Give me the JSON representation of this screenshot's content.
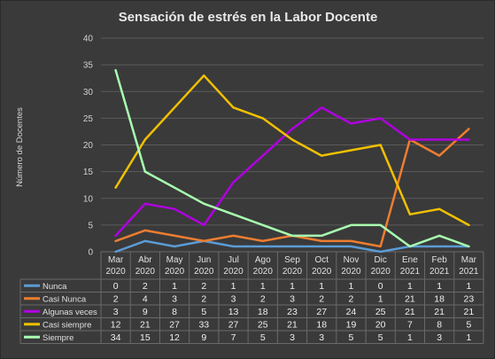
{
  "chart_data": {
    "type": "line",
    "title": "Sensación de estrés en la Labor Docente",
    "ylabel": "Número de Docentes",
    "xlabel": "",
    "ylim": [
      0,
      40
    ],
    "yticks": [
      0,
      5,
      10,
      15,
      20,
      25,
      30,
      35,
      40
    ],
    "grid": true,
    "legend": "data-table-below",
    "categories": [
      {
        "month": "Mar",
        "year": "2020"
      },
      {
        "month": "Abr",
        "year": "2020"
      },
      {
        "month": "May",
        "year": "2020"
      },
      {
        "month": "Jun",
        "year": "2020"
      },
      {
        "month": "Jul",
        "year": "2020"
      },
      {
        "month": "Ago",
        "year": "2020"
      },
      {
        "month": "Sep",
        "year": "2020"
      },
      {
        "month": "Oct",
        "year": "2020"
      },
      {
        "month": "Nov",
        "year": "2020"
      },
      {
        "month": "Dic",
        "year": "2020"
      },
      {
        "month": "Ene",
        "year": "2021"
      },
      {
        "month": "Feb",
        "year": "2021"
      },
      {
        "month": "Mar",
        "year": "2021"
      }
    ],
    "series": [
      {
        "name": "Nunca",
        "color": "#5b9bd5",
        "values": [
          0,
          2,
          1,
          2,
          1,
          1,
          1,
          1,
          1,
          0,
          1,
          1,
          1
        ]
      },
      {
        "name": "Casi Nunca",
        "color": "#ed7d31",
        "values": [
          2,
          4,
          3,
          2,
          3,
          2,
          3,
          2,
          2,
          1,
          21,
          18,
          23
        ]
      },
      {
        "name": "Algunas veces",
        "color": "#b000e0",
        "values": [
          3,
          9,
          8,
          5,
          13,
          18,
          23,
          27,
          24,
          25,
          21,
          21,
          21
        ]
      },
      {
        "name": "Casi siempre",
        "color": "#f0c000",
        "values": [
          12,
          21,
          27,
          33,
          27,
          25,
          21,
          18,
          19,
          20,
          7,
          8,
          5
        ]
      },
      {
        "name": "Siempre",
        "color": "#a8ffb0",
        "values": [
          34,
          15,
          12,
          9,
          7,
          5,
          3,
          3,
          5,
          5,
          1,
          3,
          1
        ]
      }
    ]
  }
}
